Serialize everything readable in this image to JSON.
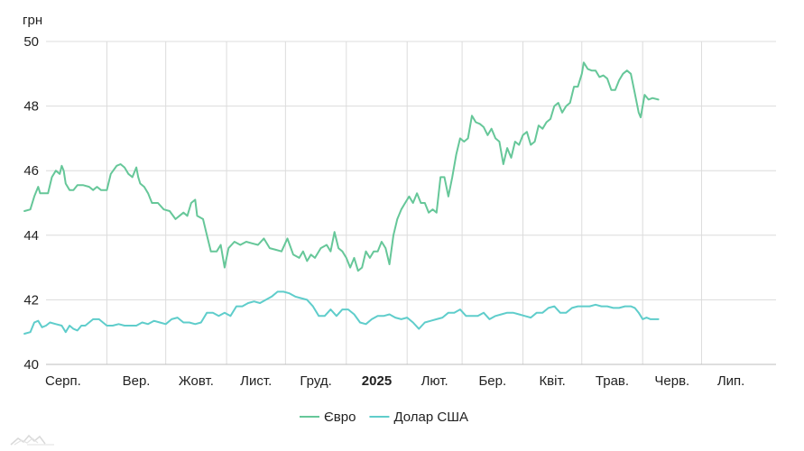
{
  "chart_data": {
    "type": "line",
    "y_unit": "грн",
    "ylim": [
      40,
      50
    ],
    "yticks": [
      40,
      42,
      44,
      46,
      48,
      50
    ],
    "x_range": [
      0,
      365
    ],
    "xticks": [
      {
        "label": "Серп.",
        "x": 0,
        "bold": false
      },
      {
        "label": "Вер.",
        "x": 31,
        "bold": false
      },
      {
        "label": "Жовт.",
        "x": 61,
        "bold": false
      },
      {
        "label": "Лист.",
        "x": 92,
        "bold": false
      },
      {
        "label": "Груд.",
        "x": 122,
        "bold": false
      },
      {
        "label": "2025",
        "x": 153,
        "bold": true
      },
      {
        "label": "Лют.",
        "x": 184,
        "bold": false
      },
      {
        "label": "Бер.",
        "x": 212,
        "bold": false
      },
      {
        "label": "Квіт.",
        "x": 243,
        "bold": false
      },
      {
        "label": "Трав.",
        "x": 273,
        "bold": false
      },
      {
        "label": "Черв.",
        "x": 304,
        "bold": false
      },
      {
        "label": "Лип.",
        "x": 334,
        "bold": false
      }
    ],
    "grid": true,
    "legend_position": "bottom-center",
    "series": [
      {
        "name": "Євро",
        "color": "#66c799",
        "points": [
          [
            -11,
            44.75
          ],
          [
            -8,
            44.8
          ],
          [
            -6,
            45.2
          ],
          [
            -4,
            45.5
          ],
          [
            -3,
            45.3
          ],
          [
            -1,
            45.3
          ],
          [
            1,
            45.3
          ],
          [
            3,
            45.8
          ],
          [
            5,
            46.0
          ],
          [
            7,
            45.9
          ],
          [
            8,
            46.15
          ],
          [
            9,
            46.0
          ],
          [
            10,
            45.6
          ],
          [
            12,
            45.4
          ],
          [
            14,
            45.4
          ],
          [
            16,
            45.55
          ],
          [
            19,
            45.55
          ],
          [
            22,
            45.5
          ],
          [
            24,
            45.4
          ],
          [
            26,
            45.5
          ],
          [
            28,
            45.4
          ],
          [
            31,
            45.4
          ],
          [
            33,
            45.9
          ],
          [
            36,
            46.15
          ],
          [
            38,
            46.2
          ],
          [
            40,
            46.1
          ],
          [
            42,
            45.9
          ],
          [
            44,
            45.8
          ],
          [
            46,
            46.1
          ],
          [
            47,
            45.8
          ],
          [
            48,
            45.6
          ],
          [
            50,
            45.5
          ],
          [
            52,
            45.3
          ],
          [
            54,
            45.0
          ],
          [
            57,
            45.0
          ],
          [
            60,
            44.8
          ],
          [
            63,
            44.75
          ],
          [
            66,
            44.5
          ],
          [
            68,
            44.6
          ],
          [
            70,
            44.7
          ],
          [
            72,
            44.6
          ],
          [
            74,
            45.0
          ],
          [
            76,
            45.1
          ],
          [
            77,
            44.6
          ],
          [
            80,
            44.5
          ],
          [
            82,
            44.0
          ],
          [
            84,
            43.5
          ],
          [
            87,
            43.5
          ],
          [
            89,
            43.7
          ],
          [
            91,
            43.0
          ],
          [
            93,
            43.6
          ],
          [
            96,
            43.8
          ],
          [
            99,
            43.7
          ],
          [
            102,
            43.8
          ],
          [
            105,
            43.75
          ],
          [
            108,
            43.7
          ],
          [
            111,
            43.9
          ],
          [
            114,
            43.6
          ],
          [
            117,
            43.55
          ],
          [
            120,
            43.5
          ],
          [
            123,
            43.9
          ],
          [
            126,
            43.4
          ],
          [
            129,
            43.3
          ],
          [
            131,
            43.5
          ],
          [
            133,
            43.2
          ],
          [
            135,
            43.4
          ],
          [
            137,
            43.3
          ],
          [
            140,
            43.6
          ],
          [
            143,
            43.7
          ],
          [
            145,
            43.5
          ],
          [
            147,
            44.1
          ],
          [
            149,
            43.6
          ],
          [
            151,
            43.5
          ],
          [
            153,
            43.3
          ],
          [
            155,
            43.0
          ],
          [
            157,
            43.3
          ],
          [
            159,
            42.9
          ],
          [
            161,
            43.0
          ],
          [
            163,
            43.5
          ],
          [
            165,
            43.3
          ],
          [
            167,
            43.5
          ],
          [
            169,
            43.5
          ],
          [
            171,
            43.8
          ],
          [
            173,
            43.6
          ],
          [
            175,
            43.1
          ],
          [
            177,
            44.0
          ],
          [
            179,
            44.5
          ],
          [
            181,
            44.8
          ],
          [
            183,
            45.0
          ],
          [
            185,
            45.2
          ],
          [
            187,
            45.0
          ],
          [
            189,
            45.3
          ],
          [
            191,
            45.0
          ],
          [
            193,
            45.0
          ],
          [
            195,
            44.7
          ],
          [
            197,
            44.8
          ],
          [
            199,
            44.7
          ],
          [
            201,
            45.8
          ],
          [
            203,
            45.8
          ],
          [
            205,
            45.2
          ],
          [
            207,
            45.8
          ],
          [
            209,
            46.5
          ],
          [
            211,
            47.0
          ],
          [
            213,
            46.9
          ],
          [
            215,
            47.0
          ],
          [
            217,
            47.7
          ],
          [
            219,
            47.5
          ],
          [
            221,
            47.45
          ],
          [
            223,
            47.35
          ],
          [
            225,
            47.1
          ],
          [
            227,
            47.3
          ],
          [
            229,
            47.0
          ],
          [
            231,
            46.9
          ],
          [
            233,
            46.2
          ],
          [
            235,
            46.7
          ],
          [
            237,
            46.4
          ],
          [
            239,
            46.9
          ],
          [
            241,
            46.8
          ],
          [
            243,
            47.1
          ],
          [
            245,
            47.2
          ],
          [
            247,
            46.8
          ],
          [
            249,
            46.9
          ],
          [
            251,
            47.4
          ],
          [
            253,
            47.3
          ],
          [
            255,
            47.5
          ],
          [
            257,
            47.6
          ],
          [
            259,
            48.0
          ],
          [
            261,
            48.1
          ],
          [
            263,
            47.8
          ],
          [
            265,
            48.0
          ],
          [
            267,
            48.1
          ],
          [
            269,
            48.6
          ],
          [
            271,
            48.6
          ],
          [
            273,
            49.0
          ],
          [
            274,
            49.35
          ],
          [
            276,
            49.15
          ],
          [
            278,
            49.1
          ],
          [
            280,
            49.1
          ],
          [
            282,
            48.9
          ],
          [
            284,
            48.95
          ],
          [
            286,
            48.85
          ],
          [
            288,
            48.5
          ],
          [
            290,
            48.5
          ],
          [
            292,
            48.8
          ],
          [
            294,
            49.0
          ],
          [
            296,
            49.1
          ],
          [
            298,
            49.0
          ],
          [
            300,
            48.4
          ],
          [
            302,
            47.8
          ],
          [
            303,
            47.65
          ],
          [
            305,
            48.35
          ],
          [
            307,
            48.2
          ],
          [
            309,
            48.25
          ],
          [
            312,
            48.2
          ]
        ]
      },
      {
        "name": "Долар США",
        "color": "#5fcdcb",
        "points": [
          [
            -11,
            40.95
          ],
          [
            -8,
            41.0
          ],
          [
            -6,
            41.3
          ],
          [
            -4,
            41.35
          ],
          [
            -2,
            41.15
          ],
          [
            0,
            41.2
          ],
          [
            2,
            41.3
          ],
          [
            5,
            41.25
          ],
          [
            8,
            41.2
          ],
          [
            10,
            41.0
          ],
          [
            12,
            41.2
          ],
          [
            14,
            41.1
          ],
          [
            16,
            41.05
          ],
          [
            18,
            41.2
          ],
          [
            20,
            41.2
          ],
          [
            22,
            41.3
          ],
          [
            24,
            41.4
          ],
          [
            27,
            41.4
          ],
          [
            29,
            41.3
          ],
          [
            31,
            41.2
          ],
          [
            34,
            41.2
          ],
          [
            37,
            41.25
          ],
          [
            40,
            41.2
          ],
          [
            43,
            41.2
          ],
          [
            46,
            41.2
          ],
          [
            49,
            41.3
          ],
          [
            52,
            41.25
          ],
          [
            55,
            41.35
          ],
          [
            58,
            41.3
          ],
          [
            61,
            41.25
          ],
          [
            64,
            41.4
          ],
          [
            67,
            41.45
          ],
          [
            70,
            41.3
          ],
          [
            73,
            41.3
          ],
          [
            76,
            41.25
          ],
          [
            79,
            41.3
          ],
          [
            82,
            41.6
          ],
          [
            85,
            41.6
          ],
          [
            88,
            41.5
          ],
          [
            91,
            41.6
          ],
          [
            94,
            41.5
          ],
          [
            97,
            41.8
          ],
          [
            100,
            41.8
          ],
          [
            103,
            41.9
          ],
          [
            106,
            41.95
          ],
          [
            109,
            41.9
          ],
          [
            112,
            42.0
          ],
          [
            115,
            42.1
          ],
          [
            118,
            42.25
          ],
          [
            121,
            42.25
          ],
          [
            124,
            42.2
          ],
          [
            127,
            42.1
          ],
          [
            130,
            42.05
          ],
          [
            133,
            42.0
          ],
          [
            136,
            41.8
          ],
          [
            139,
            41.5
          ],
          [
            142,
            41.5
          ],
          [
            145,
            41.7
          ],
          [
            148,
            41.5
          ],
          [
            151,
            41.7
          ],
          [
            154,
            41.7
          ],
          [
            157,
            41.55
          ],
          [
            160,
            41.3
          ],
          [
            163,
            41.25
          ],
          [
            166,
            41.4
          ],
          [
            169,
            41.5
          ],
          [
            172,
            41.5
          ],
          [
            175,
            41.55
          ],
          [
            178,
            41.45
          ],
          [
            181,
            41.4
          ],
          [
            184,
            41.45
          ],
          [
            187,
            41.3
          ],
          [
            190,
            41.1
          ],
          [
            193,
            41.3
          ],
          [
            196,
            41.35
          ],
          [
            199,
            41.4
          ],
          [
            202,
            41.45
          ],
          [
            205,
            41.6
          ],
          [
            208,
            41.6
          ],
          [
            211,
            41.7
          ],
          [
            214,
            41.5
          ],
          [
            217,
            41.5
          ],
          [
            220,
            41.5
          ],
          [
            223,
            41.6
          ],
          [
            226,
            41.4
          ],
          [
            229,
            41.5
          ],
          [
            232,
            41.55
          ],
          [
            235,
            41.6
          ],
          [
            238,
            41.6
          ],
          [
            241,
            41.55
          ],
          [
            244,
            41.5
          ],
          [
            247,
            41.45
          ],
          [
            250,
            41.6
          ],
          [
            253,
            41.6
          ],
          [
            256,
            41.75
          ],
          [
            259,
            41.8
          ],
          [
            262,
            41.6
          ],
          [
            265,
            41.6
          ],
          [
            268,
            41.75
          ],
          [
            271,
            41.8
          ],
          [
            274,
            41.8
          ],
          [
            277,
            41.8
          ],
          [
            280,
            41.85
          ],
          [
            283,
            41.8
          ],
          [
            286,
            41.8
          ],
          [
            289,
            41.75
          ],
          [
            292,
            41.75
          ],
          [
            295,
            41.8
          ],
          [
            298,
            41.8
          ],
          [
            300,
            41.75
          ],
          [
            302,
            41.6
          ],
          [
            304,
            41.4
          ],
          [
            306,
            41.45
          ],
          [
            308,
            41.4
          ],
          [
            310,
            41.4
          ],
          [
            312,
            41.4
          ]
        ]
      }
    ]
  }
}
